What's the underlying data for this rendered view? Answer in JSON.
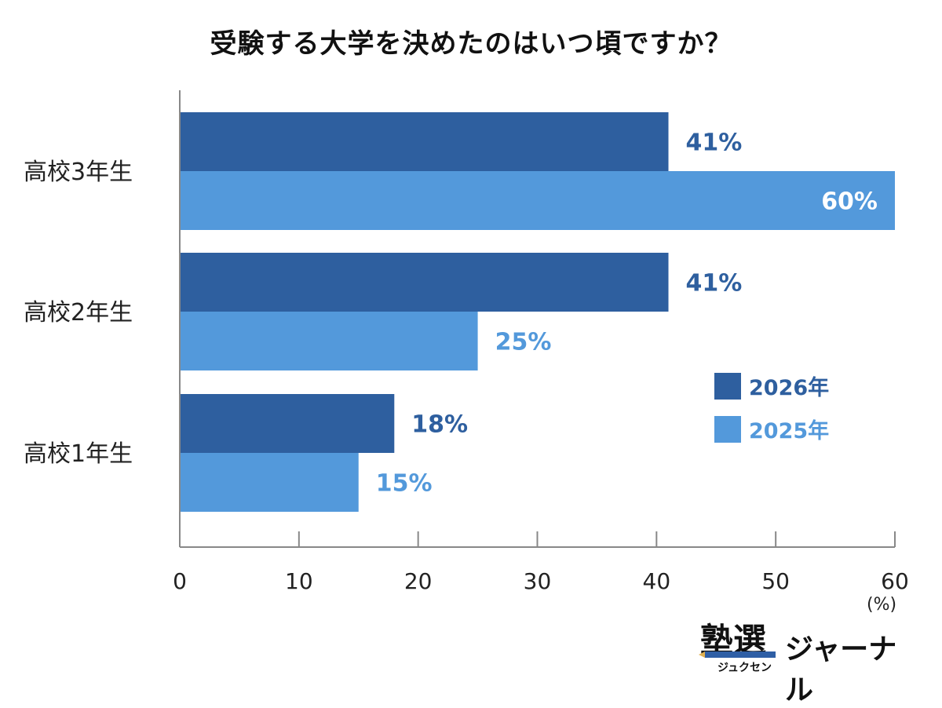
{
  "chart_data": {
    "type": "bar",
    "orientation": "horizontal",
    "title": "受験する大学を決めたのはいつ頃ですか？",
    "categories": [
      "高校3年生",
      "高校2年生",
      "高校1年生"
    ],
    "series": [
      {
        "name": "2026年",
        "values": [
          41,
          41,
          18
        ],
        "labels": [
          "41%",
          "41%",
          "18%"
        ],
        "color": "#2e5f9f"
      },
      {
        "name": "2025年",
        "values": [
          60,
          25,
          15
        ],
        "labels": [
          "60%",
          "25%",
          "15%"
        ],
        "color": "#5399db"
      }
    ],
    "xlim": [
      0,
      60
    ],
    "x_ticks": [
      "0",
      "10",
      "20",
      "30",
      "40",
      "50",
      "60"
    ],
    "unit_label": "(%)",
    "legend_position": "right",
    "grid": false
  },
  "branding": {
    "logo_kanji": "塾選",
    "logo_kana": "ジュクセン",
    "logo_text": "ジャーナル"
  }
}
